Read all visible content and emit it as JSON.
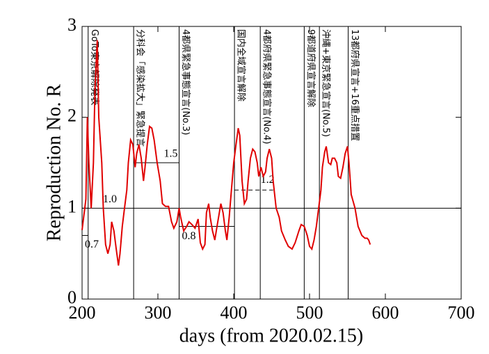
{
  "chart_data": {
    "type": "line",
    "xlabel": "days   (from 2020.02.15)",
    "ylabel": "Reproduction No.  R",
    "xlim": [
      200,
      700
    ],
    "xticks": [
      200,
      300,
      400,
      500,
      600,
      700
    ],
    "ylim": [
      0,
      3
    ],
    "yticks": [
      0,
      1,
      2,
      3
    ],
    "color": "#e00000",
    "x": [
      200,
      205,
      207,
      209,
      212,
      215,
      217,
      220,
      222,
      226,
      228,
      231,
      234,
      237,
      239,
      242,
      245,
      248,
      250,
      253,
      256,
      259,
      261,
      264,
      267,
      270,
      272,
      275,
      278,
      281,
      283,
      286,
      289,
      292,
      295,
      299,
      303,
      306,
      310,
      314,
      318,
      321,
      325,
      328,
      330,
      334,
      338,
      341,
      345,
      349,
      353,
      356,
      359,
      362,
      364,
      367,
      369,
      372,
      375,
      378,
      381,
      383,
      386,
      389,
      391,
      394,
      397,
      400,
      403,
      406,
      408,
      411,
      414,
      417,
      419,
      422,
      425,
      428,
      431,
      433,
      436,
      439,
      442,
      444,
      447,
      450,
      452,
      456,
      460,
      463,
      468,
      472,
      477,
      481,
      486,
      489,
      493,
      497,
      500,
      503,
      506,
      509,
      512,
      515,
      517,
      520,
      522,
      525,
      528,
      530,
      533,
      536,
      538,
      541,
      544,
      547,
      550,
      552,
      555,
      560,
      564,
      569,
      573,
      576,
      578,
      580
    ],
    "values": [
      0.76,
      1.1,
      2.0,
      1.5,
      1.0,
      1.5,
      2.3,
      2.85,
      2.0,
      1.5,
      1.0,
      0.6,
      0.5,
      0.6,
      0.85,
      0.75,
      0.55,
      0.37,
      0.5,
      0.8,
      1.0,
      1.2,
      1.5,
      1.75,
      1.7,
      1.45,
      1.6,
      1.7,
      1.55,
      1.3,
      1.45,
      1.7,
      1.9,
      1.88,
      1.75,
      1.5,
      1.3,
      1.05,
      1.02,
      1.02,
      0.85,
      0.78,
      0.85,
      1.0,
      0.9,
      0.75,
      0.8,
      0.85,
      0.82,
      0.78,
      0.88,
      0.62,
      0.55,
      0.6,
      0.95,
      1.05,
      0.9,
      0.75,
      0.65,
      0.8,
      0.95,
      1.05,
      0.95,
      0.75,
      0.65,
      0.9,
      1.2,
      1.5,
      1.7,
      1.88,
      1.8,
      1.3,
      1.05,
      1.1,
      1.3,
      1.55,
      1.65,
      1.62,
      1.5,
      1.35,
      1.45,
      1.35,
      1.4,
      1.55,
      1.65,
      1.55,
      1.3,
      1.0,
      0.9,
      0.75,
      0.65,
      0.58,
      0.55,
      0.62,
      0.75,
      0.82,
      0.8,
      0.7,
      0.58,
      0.55,
      0.65,
      0.8,
      1.0,
      1.2,
      1.45,
      1.62,
      1.68,
      1.5,
      1.48,
      1.55,
      1.55,
      1.5,
      1.35,
      1.33,
      1.45,
      1.6,
      1.68,
      1.5,
      1.15,
      1.0,
      0.8,
      0.7,
      0.67,
      0.67,
      0.65,
      0.6
    ],
    "events": [
      {
        "x": 208,
        "label": "GoTo東京解除発表"
      },
      {
        "x": 268,
        "label": "分科会「感染拡大」緊急提言"
      },
      {
        "x": 328,
        "label": "4都県緊急事態宣言(No.3)"
      },
      {
        "x": 401,
        "label": "国内全域宣言解除"
      },
      {
        "x": 435,
        "label": "4都府県緊急事態宣言(No.4)"
      },
      {
        "x": 493,
        "label": "9都道府県宣言解除"
      },
      {
        "x": 513,
        "label": "沖縄+東京緊急宣言(No.5)"
      },
      {
        "x": 551,
        "label": "13都府県宣言+16重点措置"
      }
    ],
    "levels": [
      {
        "value": 0.7,
        "label": "0.7",
        "x0": 200,
        "x1": 208
      },
      {
        "value": 1,
        "label": "1.0",
        "x0": 200,
        "x1": 700
      },
      {
        "value": 1.5,
        "label": "1.5",
        "x0": 268,
        "x1": 328
      },
      {
        "value": 0.8,
        "label": "0.8",
        "x0": 328,
        "x1": 401
      },
      {
        "value": 1.2,
        "label": "1.2",
        "x0": 401,
        "x1": 452,
        "dashed": true
      }
    ]
  }
}
